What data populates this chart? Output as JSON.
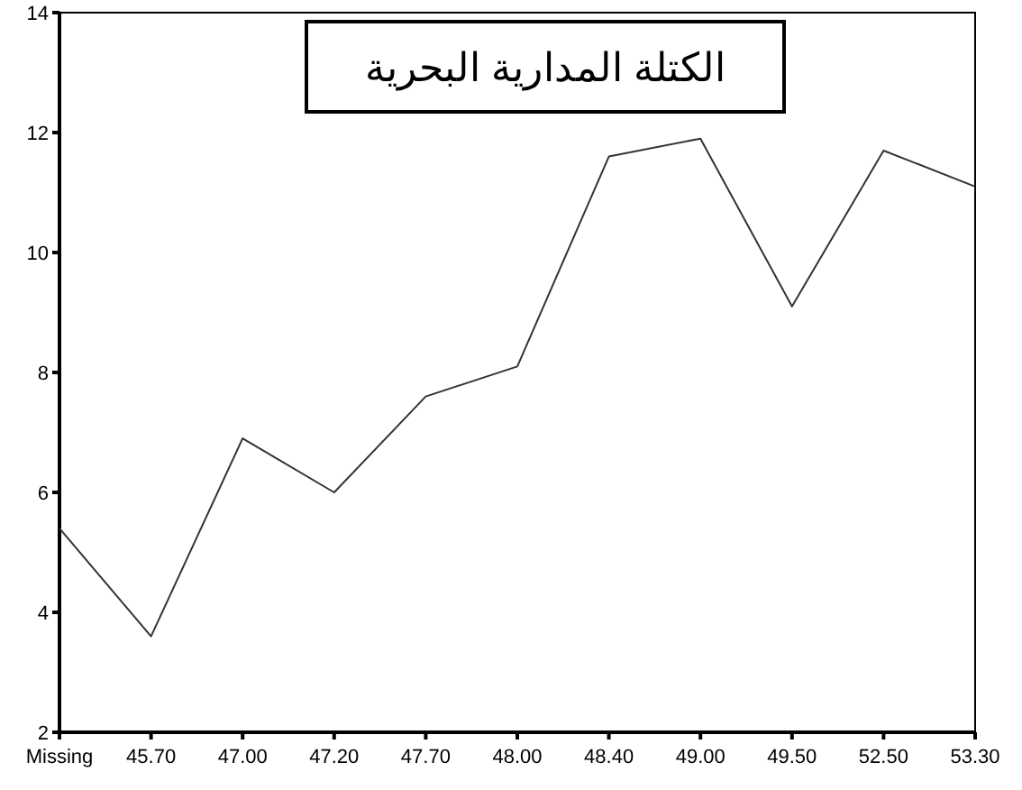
{
  "chart_data": {
    "type": "line",
    "title": "الكتلة المدارية البحرية",
    "categories": [
      "Missing",
      "45.70",
      "47.00",
      "47.20",
      "47.70",
      "48.00",
      "48.40",
      "49.00",
      "49.50",
      "52.50",
      "53.30"
    ],
    "series": [
      {
        "color": "#333333",
        "values": [
          5.4,
          3.6,
          6.9,
          6.0,
          7.6,
          8.1,
          11.6,
          11.9,
          9.1,
          11.7,
          11.1
        ]
      }
    ],
    "ylim": [
      2,
      14
    ],
    "yticks": [
      2,
      4,
      6,
      8,
      10,
      12,
      14
    ],
    "grid": false,
    "marker": "none",
    "line_style": "solid"
  }
}
